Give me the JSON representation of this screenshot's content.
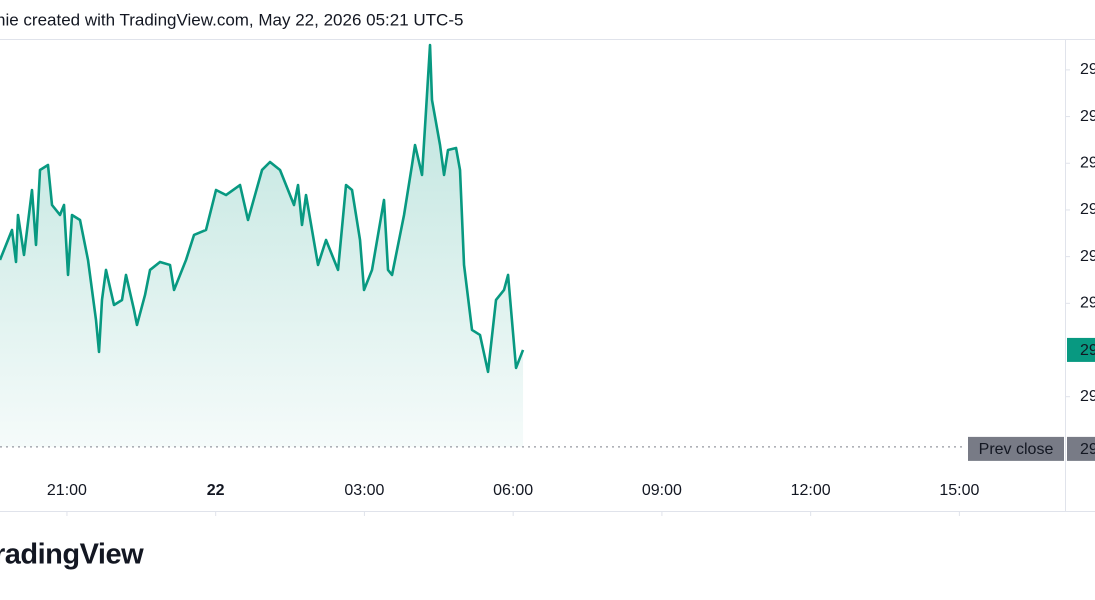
{
  "chart_data": {
    "type": "line",
    "title": "nie created with TradingView.com, May 22, 2026 05:21 UTC-5",
    "brand": "radingView",
    "x": [
      19.65,
      19.892,
      19.973,
      20.013,
      20.134,
      20.295,
      20.376,
      20.457,
      20.618,
      20.699,
      20.86,
      20.941,
      21.022,
      21.102,
      21.264,
      21.425,
      21.586,
      21.647,
      21.707,
      21.788,
      21.949,
      22.111,
      22.191,
      22.353,
      22.413,
      22.575,
      22.676,
      22.877,
      23.079,
      23.16,
      23.402,
      23.563,
      23.805,
      24.007,
      24.208,
      24.491,
      24.652,
      24.935,
      25.096,
      25.298,
      25.58,
      25.661,
      25.741,
      25.822,
      26.064,
      26.226,
      26.468,
      26.629,
      26.75,
      26.911,
      26.992,
      27.153,
      27.395,
      27.476,
      27.557,
      27.799,
      27.96,
      28.021,
      28.162,
      28.243,
      28.323,
      28.363,
      28.525,
      28.606,
      28.686,
      28.848,
      28.928,
      29.009,
      29.17,
      29.331,
      29.493,
      29.654,
      29.816,
      29.897,
      30.058,
      30.199
    ],
    "series": [
      {
        "color": "#089981",
        "values": [
          3.929,
          4.571,
          3.886,
          4.892,
          4.036,
          5.427,
          4.25,
          5.856,
          5.963,
          5.106,
          4.892,
          5.106,
          3.608,
          4.892,
          4.785,
          3.929,
          2.644,
          1.959,
          3.072,
          3.715,
          2.965,
          3.072,
          3.608,
          2.858,
          2.537,
          3.179,
          3.715,
          3.886,
          3.822,
          3.286,
          3.929,
          4.464,
          4.571,
          5.427,
          5.32,
          5.534,
          4.785,
          5.856,
          6.027,
          5.856,
          5.106,
          5.534,
          4.678,
          5.32,
          3.822,
          4.357,
          3.715,
          5.534,
          5.427,
          4.357,
          3.286,
          3.715,
          5.213,
          3.715,
          3.608,
          4.892,
          5.963,
          6.391,
          5.749,
          7.14,
          8.532,
          7.354,
          6.391,
          5.749,
          6.284,
          6.327,
          5.856,
          3.822,
          2.43,
          2.323,
          1.531,
          3.072,
          3.286,
          3.608,
          1.616,
          2.002
        ]
      }
    ],
    "last_price_label": "29",
    "prev_close": {
      "name": "Prev close",
      "value": -0.075,
      "label": "29"
    },
    "xlim": [
      19.65,
      41.13
    ],
    "ylim": [
      -0.57,
      8.64
    ],
    "xticks": [
      {
        "value": 21,
        "label": "21:00"
      },
      {
        "value": 24,
        "label": "22"
      },
      {
        "value": 27,
        "label": "03:00"
      },
      {
        "value": 30,
        "label": "06:00"
      },
      {
        "value": 33,
        "label": "09:00"
      },
      {
        "value": 36,
        "label": "12:00"
      },
      {
        "value": 39,
        "label": "15:00"
      }
    ],
    "yticks": [
      {
        "value": 8,
        "label": "29"
      },
      {
        "value": 7,
        "label": "29"
      },
      {
        "value": 6,
        "label": "29"
      },
      {
        "value": 5,
        "label": "29"
      },
      {
        "value": 4,
        "label": "29"
      },
      {
        "value": 3,
        "label": "29"
      },
      {
        "value": 1,
        "label": "29"
      }
    ],
    "grid": false
  }
}
